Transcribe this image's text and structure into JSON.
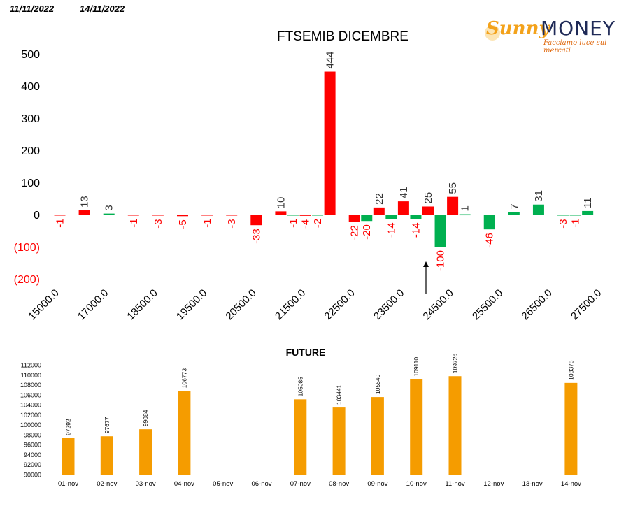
{
  "header": {
    "date_left": "11/11/2022",
    "date_right": "14/11/2022"
  },
  "logo": {
    "name_part1": "Sunny",
    "name_part2": "MONEY",
    "tagline": "Facciamo luce sui mercati"
  },
  "colors": {
    "red": "#ff0000",
    "green": "#00b050",
    "orange": "#f59c00",
    "negative_label": "#ff0000",
    "positive_label": "#333333"
  },
  "chart_data": [
    {
      "type": "bar",
      "title": "FTSEMIB DICEMBRE",
      "ylim": [
        -200,
        500
      ],
      "yticks": [
        "500",
        "400",
        "300",
        "200",
        "100",
        "0",
        "(100)",
        "(200)"
      ],
      "ytick_values": [
        500,
        400,
        300,
        200,
        100,
        0,
        -100,
        -200
      ],
      "xtick_labels": [
        "15000.0",
        "17000.0",
        "18500.0",
        "19500.0",
        "20500.0",
        "21500.0",
        "22500.0",
        "23500.0",
        "24500.0",
        "25500.0",
        "26500.0",
        "27500.0"
      ],
      "annotation": "arrow pointing to 24000 strike",
      "series": [
        {
          "color": "red",
          "bars": [
            {
              "slot": 0,
              "value": -1
            },
            {
              "slot": 2,
              "value": 13
            },
            {
              "slot": 6,
              "value": -1
            },
            {
              "slot": 8,
              "value": -3
            },
            {
              "slot": 10,
              "value": -5
            },
            {
              "slot": 12,
              "value": -1
            },
            {
              "slot": 14,
              "value": -3
            },
            {
              "slot": 16,
              "value": -33
            },
            {
              "slot": 18,
              "value": 10
            },
            {
              "slot": 20,
              "value": -4
            },
            {
              "slot": 22,
              "value": 444
            },
            {
              "slot": 24,
              "value": -22
            },
            {
              "slot": 26,
              "value": 22
            },
            {
              "slot": 28,
              "value": 41
            },
            {
              "slot": 30,
              "value": 25
            },
            {
              "slot": 32,
              "value": 55
            }
          ]
        },
        {
          "color": "green",
          "bars": [
            {
              "slot": 4,
              "value": 3
            },
            {
              "slot": 19,
              "value": -1
            },
            {
              "slot": 21,
              "value": -2
            },
            {
              "slot": 25,
              "value": -20
            },
            {
              "slot": 27,
              "value": -14
            },
            {
              "slot": 29,
              "value": -14
            },
            {
              "slot": 31,
              "value": -100
            },
            {
              "slot": 33,
              "value": 1
            },
            {
              "slot": 35,
              "value": -46
            },
            {
              "slot": 37,
              "value": 7
            },
            {
              "slot": 39,
              "value": 31
            },
            {
              "slot": 41,
              "value": -3
            },
            {
              "slot": 42,
              "value": -1
            },
            {
              "slot": 43,
              "value": 11
            }
          ]
        }
      ]
    },
    {
      "type": "bar",
      "title": "FUTURE",
      "ylim": [
        90000,
        112000
      ],
      "yticks": [
        "112000",
        "110000",
        "108000",
        "106000",
        "104000",
        "102000",
        "100000",
        "98000",
        "96000",
        "94000",
        "92000",
        "90000"
      ],
      "categories": [
        "01-nov",
        "02-nov",
        "03-nov",
        "04-nov",
        "05-nov",
        "06-nov",
        "07-nov",
        "08-nov",
        "09-nov",
        "10-nov",
        "11-nov",
        "12-nov",
        "13-nov",
        "14-nov"
      ],
      "values": [
        97292,
        97677,
        99084,
        106773,
        null,
        null,
        105085,
        103441,
        105540,
        109110,
        109726,
        null,
        null,
        108378
      ],
      "labels": [
        "97292",
        "97677",
        "99084",
        "106773",
        "",
        "",
        "105085",
        "103441",
        "105540",
        "109110",
        "109726",
        "",
        "",
        "108378"
      ]
    }
  ]
}
